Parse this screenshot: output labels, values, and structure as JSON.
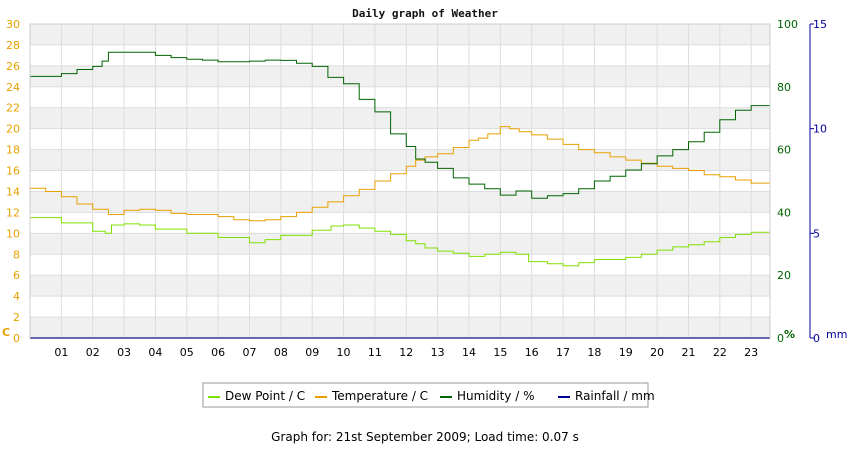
{
  "chart_data": {
    "type": "line",
    "title": "Daily graph of Weather",
    "x_ticks": [
      "01",
      "02",
      "03",
      "04",
      "05",
      "06",
      "07",
      "08",
      "09",
      "10",
      "11",
      "12",
      "13",
      "14",
      "15",
      "16",
      "17",
      "18",
      "19",
      "20",
      "21",
      "22",
      "23"
    ],
    "xlim": [
      0,
      23.6
    ],
    "axes": {
      "left": {
        "unit": "C",
        "ticks": [
          0,
          2,
          4,
          6,
          8,
          10,
          12,
          14,
          16,
          18,
          20,
          22,
          24,
          26,
          28,
          30
        ],
        "lim": [
          0,
          30
        ],
        "color": "#e8a000"
      },
      "right1": {
        "unit": "%",
        "ticks": [
          0,
          20,
          40,
          60,
          80,
          100
        ],
        "lim": [
          0,
          100
        ],
        "color": "#006400"
      },
      "right2": {
        "unit": "mm",
        "ticks": [
          0,
          5,
          10,
          15
        ],
        "lim": [
          0,
          15
        ],
        "color": "#000099"
      }
    },
    "grid": true,
    "legend_position": "bottom-center",
    "series": [
      {
        "name": "Dew Point / C",
        "axis": "left",
        "color": "#80e000",
        "points": [
          [
            0,
            11.5
          ],
          [
            1,
            11.0
          ],
          [
            2,
            10.2
          ],
          [
            2.4,
            10.0
          ],
          [
            2.6,
            10.8
          ],
          [
            3,
            10.9
          ],
          [
            3.5,
            10.8
          ],
          [
            4,
            10.4
          ],
          [
            5,
            10.0
          ],
          [
            6,
            9.6
          ],
          [
            7,
            9.1
          ],
          [
            7.5,
            9.4
          ],
          [
            8,
            9.8
          ],
          [
            9,
            10.3
          ],
          [
            9.6,
            10.7
          ],
          [
            10,
            10.8
          ],
          [
            10.5,
            10.5
          ],
          [
            11,
            10.2
          ],
          [
            11.5,
            9.9
          ],
          [
            12,
            9.3
          ],
          [
            12.3,
            9.0
          ],
          [
            12.6,
            8.6
          ],
          [
            13,
            8.3
          ],
          [
            13.5,
            8.1
          ],
          [
            14,
            7.8
          ],
          [
            14.5,
            8.0
          ],
          [
            15,
            8.2
          ],
          [
            15.5,
            8.0
          ],
          [
            15.9,
            7.3
          ],
          [
            16.5,
            7.1
          ],
          [
            17,
            6.9
          ],
          [
            17.5,
            7.2
          ],
          [
            18,
            7.5
          ],
          [
            19,
            7.7
          ],
          [
            19.5,
            8.0
          ],
          [
            20,
            8.4
          ],
          [
            20.5,
            8.7
          ],
          [
            21,
            8.9
          ],
          [
            21.5,
            9.2
          ],
          [
            22,
            9.6
          ],
          [
            22.5,
            9.9
          ],
          [
            23,
            10.1
          ],
          [
            23.6,
            10.2
          ]
        ]
      },
      {
        "name": "Temperature / C",
        "axis": "left",
        "color": "#e8a000",
        "points": [
          [
            0,
            14.3
          ],
          [
            0.5,
            14.0
          ],
          [
            1,
            13.5
          ],
          [
            1.5,
            12.8
          ],
          [
            2,
            12.3
          ],
          [
            2.5,
            11.8
          ],
          [
            3,
            12.2
          ],
          [
            3.5,
            12.3
          ],
          [
            4,
            12.2
          ],
          [
            4.5,
            11.9
          ],
          [
            5,
            11.8
          ],
          [
            6,
            11.6
          ],
          [
            6.5,
            11.3
          ],
          [
            7,
            11.2
          ],
          [
            7.5,
            11.3
          ],
          [
            8,
            11.6
          ],
          [
            8.5,
            12.0
          ],
          [
            9,
            12.5
          ],
          [
            9.5,
            13.0
          ],
          [
            10,
            13.6
          ],
          [
            10.5,
            14.2
          ],
          [
            11,
            15.0
          ],
          [
            11.5,
            15.7
          ],
          [
            12,
            16.4
          ],
          [
            12.3,
            17.0
          ],
          [
            12.6,
            17.3
          ],
          [
            13,
            17.6
          ],
          [
            13.5,
            18.2
          ],
          [
            14,
            18.9
          ],
          [
            14.3,
            19.1
          ],
          [
            14.6,
            19.5
          ],
          [
            15,
            20.2
          ],
          [
            15.3,
            20.0
          ],
          [
            15.6,
            19.7
          ],
          [
            16,
            19.4
          ],
          [
            16.5,
            19.0
          ],
          [
            17,
            18.5
          ],
          [
            17.5,
            18.0
          ],
          [
            18,
            17.7
          ],
          [
            18.5,
            17.3
          ],
          [
            19,
            17.0
          ],
          [
            19.5,
            16.7
          ],
          [
            20,
            16.4
          ],
          [
            20.5,
            16.2
          ],
          [
            21,
            16.0
          ],
          [
            21.5,
            15.6
          ],
          [
            22,
            15.4
          ],
          [
            22.5,
            15.1
          ],
          [
            23,
            14.8
          ],
          [
            23.6,
            14.6
          ]
        ]
      },
      {
        "name": "Humidity / %",
        "axis": "right1",
        "color": "#006400",
        "points": [
          [
            0,
            83.3
          ],
          [
            0.8,
            83.3
          ],
          [
            1,
            84.2
          ],
          [
            1.5,
            85.5
          ],
          [
            2,
            86.5
          ],
          [
            2.3,
            88.2
          ],
          [
            2.5,
            91.0
          ],
          [
            3,
            91.0
          ],
          [
            3.5,
            91.0
          ],
          [
            4,
            90.0
          ],
          [
            4.5,
            89.3
          ],
          [
            5,
            88.8
          ],
          [
            5.5,
            88.5
          ],
          [
            6,
            88.0
          ],
          [
            6.5,
            88.0
          ],
          [
            7,
            88.2
          ],
          [
            7.5,
            88.5
          ],
          [
            8,
            88.4
          ],
          [
            8.5,
            87.5
          ],
          [
            9,
            86.5
          ],
          [
            9.5,
            83.0
          ],
          [
            10,
            81.0
          ],
          [
            10.5,
            76.0
          ],
          [
            11,
            72.0
          ],
          [
            11.5,
            65.0
          ],
          [
            12,
            61.0
          ],
          [
            12.3,
            57.0
          ],
          [
            12.6,
            56.0
          ],
          [
            13,
            54.0
          ],
          [
            13.5,
            51.0
          ],
          [
            14,
            49.0
          ],
          [
            14.5,
            47.5
          ],
          [
            15,
            45.5
          ],
          [
            15.5,
            46.8
          ],
          [
            16,
            44.5
          ],
          [
            16.5,
            45.3
          ],
          [
            17,
            46.0
          ],
          [
            17.5,
            47.5
          ],
          [
            18,
            50.0
          ],
          [
            18.5,
            51.5
          ],
          [
            19,
            53.5
          ],
          [
            19.5,
            55.5
          ],
          [
            20,
            58.0
          ],
          [
            20.5,
            60.0
          ],
          [
            21,
            62.5
          ],
          [
            21.5,
            65.5
          ],
          [
            22,
            69.5
          ],
          [
            22.5,
            72.5
          ],
          [
            23,
            74.0
          ],
          [
            23.6,
            75.0
          ]
        ]
      },
      {
        "name": "Rainfall / mm",
        "axis": "right2",
        "color": "#000099",
        "points": [
          [
            0,
            0
          ],
          [
            23.6,
            0
          ]
        ]
      }
    ]
  },
  "footer": {
    "text": "Graph for: 21st September 2009; Load time: 0.07 s"
  }
}
